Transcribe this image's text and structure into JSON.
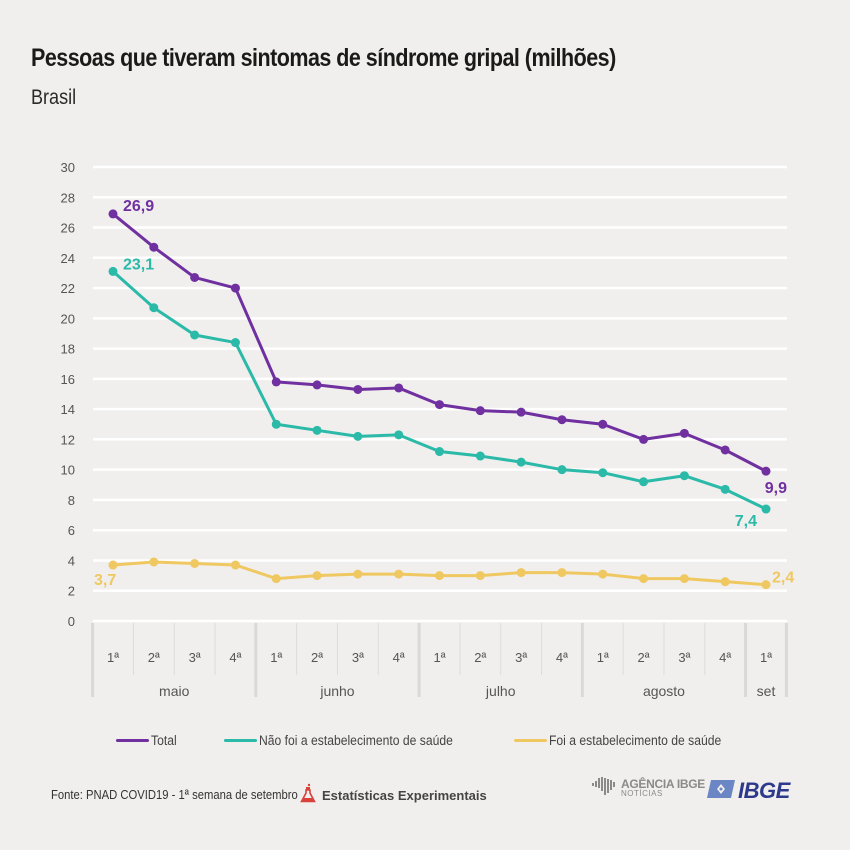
{
  "header": {
    "title": "Pessoas que tiveram sintomas de síndrome gripal (milhões)",
    "subtitle": "Brasil"
  },
  "chart_data": {
    "type": "line",
    "title": "Pessoas que tiveram sintomas de síndrome gripal (milhões)",
    "subtitle": "Brasil",
    "xlabel": "",
    "ylabel": "",
    "ylim": [
      0,
      30
    ],
    "yticks": [
      "0",
      "2",
      "4",
      "6",
      "8",
      "10",
      "12",
      "14",
      "16",
      "18",
      "20",
      "22",
      "24",
      "26",
      "28",
      "30"
    ],
    "grid": true,
    "categories": [
      "1ª",
      "2ª",
      "3ª",
      "4ª",
      "1ª",
      "2ª",
      "3ª",
      "4ª",
      "1ª",
      "2ª",
      "3ª",
      "4ª",
      "1ª",
      "2ª",
      "3ª",
      "4ª",
      "1ª"
    ],
    "month_groups": [
      {
        "label": "maio",
        "weeks": 4
      },
      {
        "label": "junho",
        "weeks": 4
      },
      {
        "label": "julho",
        "weeks": 4
      },
      {
        "label": "agosto",
        "weeks": 4
      },
      {
        "label": "set",
        "weeks": 1
      }
    ],
    "series": [
      {
        "name": "Total",
        "color": "#7030a0",
        "values": [
          26.9,
          24.7,
          22.7,
          22.0,
          15.8,
          15.6,
          15.3,
          15.4,
          14.3,
          13.9,
          13.8,
          13.3,
          13.0,
          12.0,
          12.4,
          11.3,
          9.9
        ],
        "first_label": "26,9",
        "last_label": "9,9"
      },
      {
        "name": "Não foi a estabelecimento de saúde",
        "color": "#2bb9a8",
        "values": [
          23.1,
          20.7,
          18.9,
          18.4,
          13.0,
          12.6,
          12.2,
          12.3,
          11.2,
          10.9,
          10.5,
          10.0,
          9.8,
          9.2,
          9.6,
          8.7,
          7.4
        ],
        "first_label": "23,1",
        "last_label": "7,4"
      },
      {
        "name": "Foi a estabelecimento de saúde",
        "color": "#f0c862",
        "values": [
          3.7,
          3.9,
          3.8,
          3.7,
          2.8,
          3.0,
          3.1,
          3.1,
          3.0,
          3.0,
          3.2,
          3.2,
          3.1,
          2.8,
          2.8,
          2.6,
          2.4
        ],
        "first_label": "3,7",
        "last_label": "2,4"
      }
    ],
    "legend_position": "bottom"
  },
  "legend": [
    {
      "label": "Total",
      "color": "#7030a0"
    },
    {
      "label": "Não foi a estabelecimento de saúde",
      "color": "#2bb9a8"
    },
    {
      "label": "Foi a estabelecimento de saúde",
      "color": "#f0c862"
    }
  ],
  "footer": {
    "source": "Fonte: PNAD COVID19 - 1ª semana de setembro",
    "experimental_icon": "flask-icon",
    "experimental_label": "Estatísticas Experimentais",
    "experimental_color": "#d9423b",
    "agencia_main": "AGÊNCIA IBGE",
    "agencia_sub": "NOTÍCIAS",
    "ibge_label": "IBGE",
    "ibge_color": "#2d3a8c"
  }
}
